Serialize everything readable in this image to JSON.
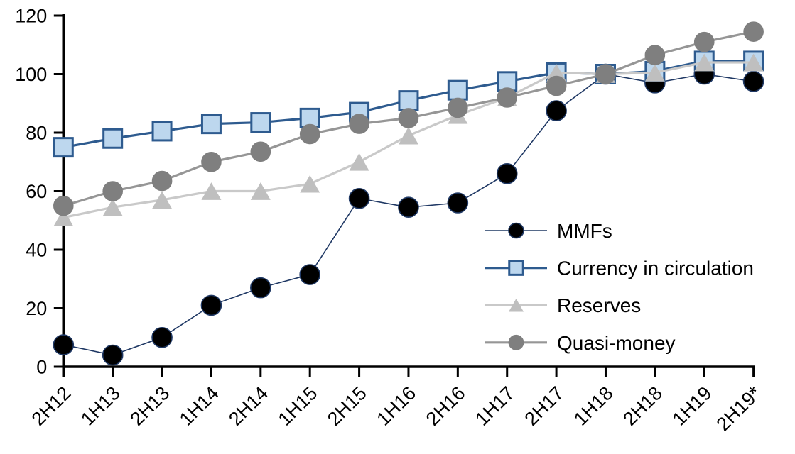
{
  "chart_data": {
    "type": "line",
    "title": "",
    "xlabel": "",
    "ylabel": "",
    "ylim": [
      0,
      120
    ],
    "yticks": [
      0,
      20,
      40,
      60,
      80,
      100,
      120
    ],
    "grid": false,
    "legend_position": "center-right",
    "categories": [
      "2H12",
      "1H13",
      "2H13",
      "1H14",
      "2H14",
      "1H15",
      "2H15",
      "1H16",
      "2H16",
      "1H17",
      "2H17",
      "1H18",
      "2H18",
      "1H19",
      "2H19*"
    ],
    "series": [
      {
        "name": "MMFs",
        "marker": "circle",
        "marker_fill": "#000000",
        "marker_stroke": "#1F3864",
        "line_color": "#1F3864",
        "line_width": 1.6,
        "marker_size": 14,
        "values": [
          7.5,
          4,
          10,
          21,
          27,
          31.5,
          57.5,
          54.5,
          56,
          66,
          87.5,
          100,
          97,
          100,
          97.5
        ]
      },
      {
        "name": "Currency in circulation",
        "marker": "square",
        "marker_fill": "#BDD7EE",
        "marker_stroke": "#2E5B8F",
        "line_color": "#2E5B8F",
        "line_width": 3.2,
        "marker_size": 13,
        "values": [
          75,
          78,
          80.5,
          83,
          83.5,
          85,
          87,
          91,
          94.5,
          97.5,
          100.5,
          100,
          101,
          104.5,
          104.5
        ]
      },
      {
        "name": "Reserves",
        "marker": "triangle",
        "marker_fill": "#BFBFBF",
        "marker_stroke": "#BFBFBF",
        "line_color": "#C9C9C9",
        "line_width": 3.2,
        "marker_size": 14,
        "values": [
          51,
          54.5,
          57,
          60,
          60,
          62.5,
          70,
          79,
          86,
          92,
          100.5,
          100,
          100.5,
          104,
          104
        ]
      },
      {
        "name": "Quasi-money",
        "marker": "circle",
        "marker_fill": "#7F7F7F",
        "marker_stroke": "#7F7F7F",
        "line_color": "#969696",
        "line_width": 3.2,
        "marker_size": 13.5,
        "values": [
          55,
          60,
          63.5,
          70,
          73.5,
          79.5,
          83,
          85,
          88.5,
          92,
          96,
          100,
          106.5,
          111,
          114.5
        ]
      }
    ],
    "axis_color": "#000000"
  }
}
